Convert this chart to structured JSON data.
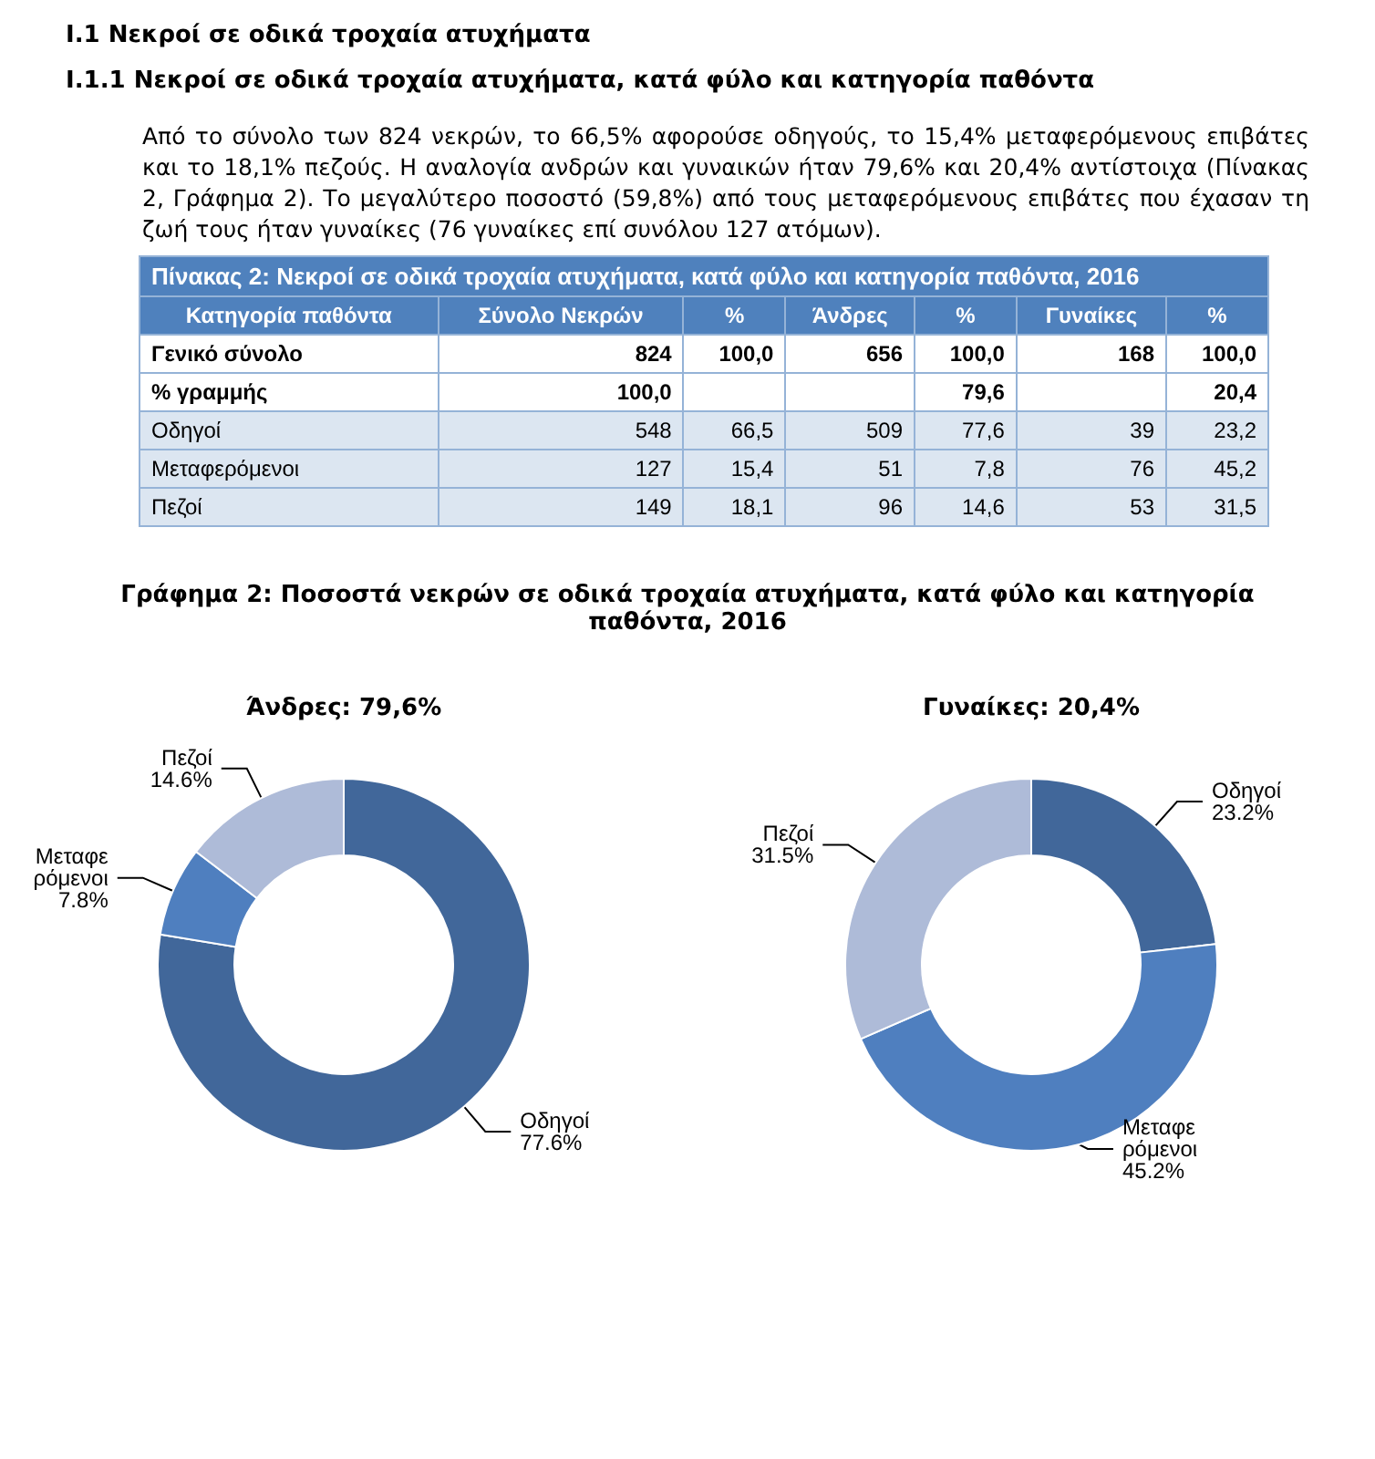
{
  "chart_data": [
    {
      "type": "other",
      "title": "Ι.1 Νεκροί σε οδικά τροχαία ατυχήματα",
      "subtitle": "Ι.1.1 Νεκροί σε οδικά τροχαία ατυχήματα, κατά φύλο και κατηγορία παθόντα",
      "annotations": [
        "Από το σύνολο των 824 νεκρών, το 66,5% αφορούσε οδηγούς, το 15,4% μεταφερόμενους επιβάτες και το 18,1% πεζούς. Η αναλογία ανδρών και γυναικών ήταν 79,6% και 20,4% αντίστοιχα (Πίνακας 2, Γράφημα 2). Το μεγαλύτερο ποσοστό (59,8%) από τους μεταφερόμενους επιβάτες που έχασαν τη ζωή τους ήταν γυναίκες (76 γυναίκες επί συνόλου 127 ατόμων)."
      ]
    },
    {
      "type": "other",
      "title": "Πίνακας  2: Νεκροί σε οδικά τροχαία ατυχήματα, κατά φύλο και κατηγορία παθόντα, 2016",
      "categories": [
        "Κατηγορία παθόντα",
        "Σύνολο Νεκρών",
        "%",
        "Άνδρες",
        "%",
        "Γυναίκες",
        "%"
      ],
      "annotations": [
        "Γενικό σύνολο",
        "824",
        "100,0",
        "656",
        "100,0",
        "168",
        "100,0",
        "% γραμμής",
        "100,0",
        null,
        null,
        "79,6",
        null,
        "20,4",
        "Οδηγοί",
        "548",
        "66,5",
        "509",
        "77,6",
        "39",
        "23,2",
        "Μεταφερόμενοι",
        "127",
        "15,4",
        "51",
        "7,8",
        "76",
        "45,2",
        "Πεζοί",
        "149",
        "18,1",
        "96",
        "14,6",
        "53",
        "31,5"
      ]
    },
    {
      "type": "other",
      "title": "Γράφημα 2: Ποσοστά νεκρών σε οδικά τροχαία ατυχήματα, κατά φύλο και κατηγορία παθόντα, 2016"
    },
    {
      "type": "donut",
      "title": "Άνδρες: 79,6%",
      "categories": [
        "Οδηγοί",
        "Μεταφερόμενοι",
        "Πεζοί"
      ],
      "values": [
        77.6,
        7.8,
        14.6
      ],
      "value_labels": [
        "77.6%",
        "7.8%",
        "14.6%"
      ],
      "colors": [
        "#41679a",
        "#4f7fbf",
        "#aebbd8"
      ]
    },
    {
      "type": "donut",
      "title": "Γυναίκες: 20,4%",
      "categories": [
        "Οδηγοί",
        "Μεταφερόμενοι",
        "Πεζοί"
      ],
      "values": [
        23.2,
        45.2,
        31.5
      ],
      "value_labels": [
        "23.2%",
        "45.2%",
        "31.5%"
      ],
      "colors": [
        "#41679a",
        "#4f7fbf",
        "#aebbd8"
      ]
    }
  ]
}
